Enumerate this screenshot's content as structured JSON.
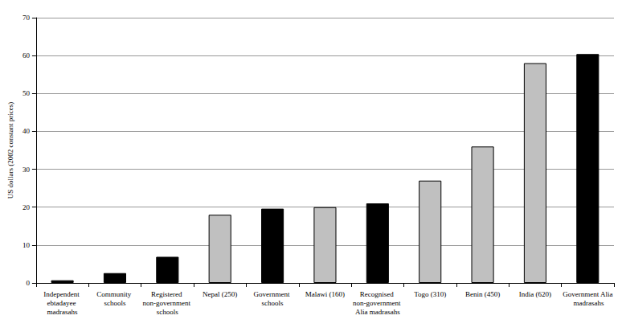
{
  "chart_data": {
    "type": "bar",
    "categories": [
      "Independent ebtadayee madrasahs",
      "Community schools",
      "Registered non-government schools",
      "Nepal (250)",
      "Government schools",
      "Malawi (160)",
      "Recognised non-government Alia madrasahs",
      "Togo (310)",
      "Benin (450)",
      "India (620)",
      "Government Alia madrasahs"
    ],
    "values": [
      0.7,
      2.6,
      6.9,
      18,
      19.6,
      20,
      21,
      27,
      36,
      58,
      60.4
    ],
    "colors": [
      "#000000",
      "#000000",
      "#000000",
      "#c0c0c0",
      "#000000",
      "#c0c0c0",
      "#000000",
      "#c0c0c0",
      "#c0c0c0",
      "#c0c0c0",
      "#000000"
    ],
    "y_label": "US dollars (2002 constant prices)",
    "ylim": [
      0,
      70
    ],
    "yticks": [
      0,
      10,
      20,
      30,
      40,
      50,
      60,
      70
    ],
    "grid": true
  }
}
